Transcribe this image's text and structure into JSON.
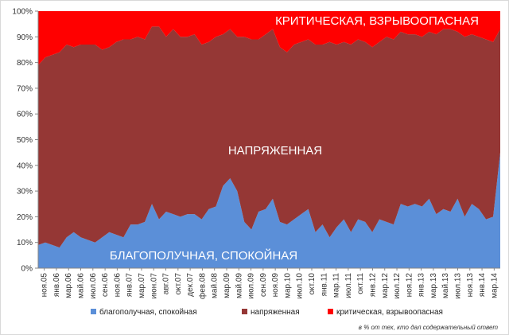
{
  "chart_data": {
    "type": "area",
    "stacked_percent": true,
    "ylim": [
      0,
      100
    ],
    "y_ticks": [
      "0%",
      "10%",
      "20%",
      "30%",
      "40%",
      "50%",
      "60%",
      "70%",
      "80%",
      "90%",
      "100%"
    ],
    "x_labels": [
      "ноя.05",
      "янв.06",
      "мар.06",
      "май.06",
      "июл.06",
      "сен.06",
      "ноя.06",
      "янв.07",
      "мар.07",
      "июн.07",
      "авг.07",
      "окт.07",
      "дек.07",
      "фев.08",
      "май.08",
      "мар.09",
      "май.09",
      "июл.09",
      "сен.09",
      "ноя.09",
      "мар.10",
      "июл.10",
      "окт.10",
      "янв.11",
      "мар.11",
      "июл.11",
      "окт.11",
      "янв.12",
      "мар.12",
      "июл.12",
      "ноя.12",
      "янв.13",
      "мар.13",
      "май.13",
      "июл.13",
      "ноя.13",
      "янв.14",
      "мар.14"
    ],
    "series": [
      {
        "name": "благополучная, спокойная",
        "color": "#5b8fd8",
        "values": [
          9,
          10,
          9,
          8,
          12,
          14,
          12,
          11,
          10,
          12,
          14,
          13,
          12,
          17,
          17,
          18,
          25,
          19,
          22,
          21,
          20,
          21,
          21,
          19,
          23,
          24,
          32,
          35,
          30,
          18,
          15,
          22,
          23,
          27,
          18,
          17,
          19,
          21,
          23,
          14,
          17,
          12,
          16,
          19,
          14,
          19,
          18,
          14,
          19,
          18,
          17,
          25,
          24,
          25,
          24,
          27,
          21,
          23,
          22,
          27,
          20,
          25,
          23,
          19,
          20,
          45
        ]
      },
      {
        "name": "напряженная",
        "color": "#953735",
        "values": [
          70,
          72,
          74,
          76,
          75,
          72,
          75,
          76,
          77,
          73,
          72,
          75,
          77,
          72,
          73,
          71,
          69,
          75,
          68,
          72,
          70,
          69,
          70,
          68,
          65,
          66,
          59,
          58,
          60,
          72,
          74,
          67,
          68,
          66,
          68,
          67,
          68,
          67,
          66,
          73,
          70,
          76,
          71,
          69,
          73,
          70,
          70,
          72,
          69,
          72,
          72,
          67,
          67,
          66,
          66,
          65,
          70,
          70,
          71,
          65,
          70,
          66,
          67,
          70,
          68,
          48
        ]
      },
      {
        "name": "критическая, взрывоопасная",
        "color": "#ff0000",
        "values": [
          21,
          18,
          17,
          16,
          13,
          14,
          13,
          13,
          13,
          15,
          14,
          12,
          11,
          11,
          10,
          11,
          6,
          6,
          10,
          7,
          10,
          10,
          9,
          13,
          12,
          10,
          9,
          7,
          10,
          10,
          11,
          11,
          9,
          7,
          14,
          16,
          13,
          12,
          11,
          13,
          13,
          12,
          13,
          12,
          13,
          11,
          12,
          14,
          12,
          10,
          11,
          8,
          9,
          9,
          10,
          8,
          9,
          7,
          7,
          8,
          10,
          9,
          10,
          11,
          12,
          7
        ]
      }
    ],
    "overlay_labels": {
      "top": "КРИТИЧЕСКАЯ, ВЗРЫВООПАСНАЯ",
      "middle": "НАПРЯЖЕННАЯ",
      "bottom": "БЛАГОПОЛУЧНАЯ, СПОКОЙНАЯ"
    },
    "legend_placement": "bottom",
    "grid": false,
    "note": "в % от тех, кто дал содержательный ответ"
  }
}
